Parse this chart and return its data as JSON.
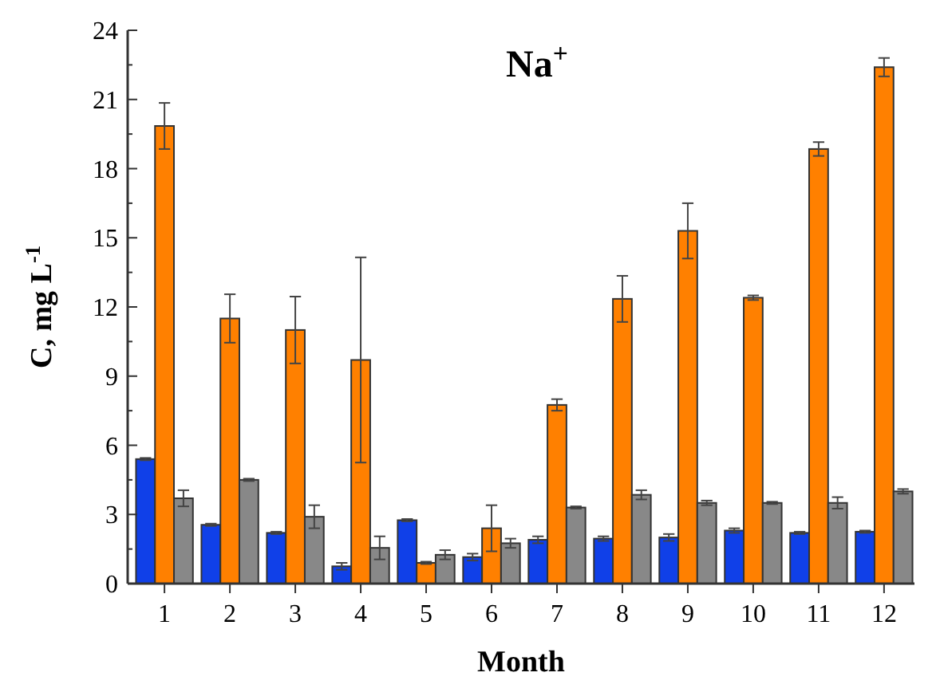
{
  "chart_data": {
    "type": "bar",
    "title": "Na$^{+}$",
    "xlabel": "Month",
    "ylabel": "C, mg L$^{-1}$",
    "categories": [
      "1",
      "2",
      "3",
      "4",
      "5",
      "6",
      "7",
      "8",
      "9",
      "10",
      "11",
      "12"
    ],
    "series": [
      {
        "color": "#1040e8",
        "values": [
          5.4,
          2.55,
          2.2,
          0.75,
          2.75,
          1.15,
          1.9,
          1.95,
          2.0,
          2.3,
          2.2,
          2.25
        ],
        "errors": [
          0.05,
          0.05,
          0.05,
          0.15,
          0.05,
          0.15,
          0.15,
          0.1,
          0.15,
          0.1,
          0.05,
          0.05
        ]
      },
      {
        "color": "#ff8000",
        "values": [
          19.85,
          11.5,
          11.0,
          9.7,
          0.9,
          2.4,
          7.75,
          12.35,
          15.3,
          12.4,
          18.85,
          22.4
        ],
        "errors": [
          1.0,
          1.05,
          1.45,
          4.45,
          0.05,
          1.0,
          0.25,
          1.0,
          1.2,
          0.1,
          0.3,
          0.4
        ]
      },
      {
        "color": "#888888",
        "values": [
          3.7,
          4.5,
          2.9,
          1.55,
          1.25,
          1.75,
          3.3,
          3.85,
          3.5,
          3.5,
          3.5,
          4.0
        ],
        "errors": [
          0.35,
          0.05,
          0.5,
          0.5,
          0.2,
          0.2,
          0.05,
          0.2,
          0.1,
          0.05,
          0.25,
          0.1
        ]
      }
    ],
    "ylim": [
      0,
      24
    ],
    "yticks": [
      0,
      3,
      6,
      9,
      12,
      15,
      18,
      21,
      24
    ]
  }
}
